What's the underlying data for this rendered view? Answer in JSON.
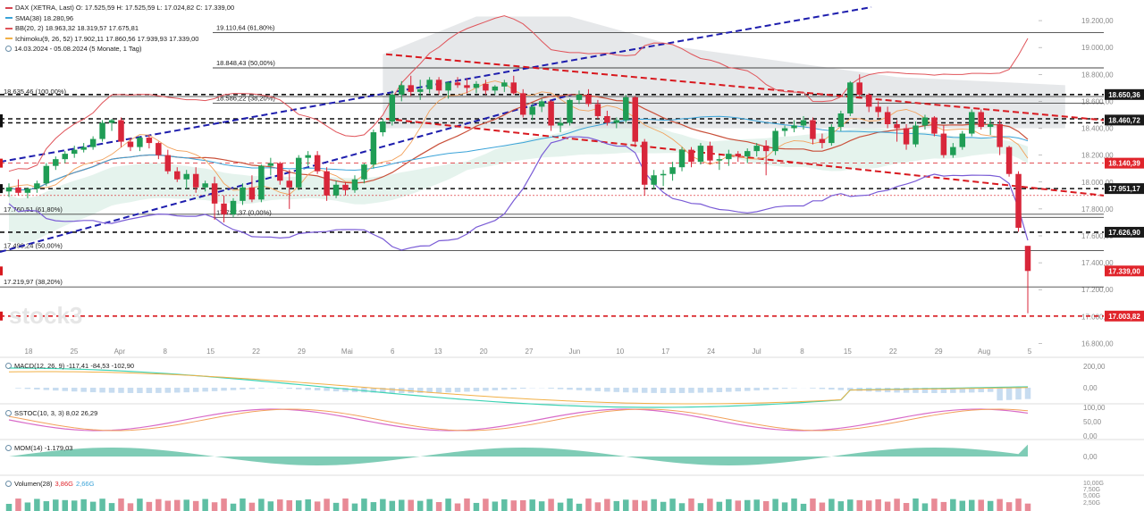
{
  "legend": {
    "title_row": "DAX (XETRA, Last)  O: 17.525,59  H: 17.525,59  L: 17.024,82  C: 17.339,00",
    "sma_row": "SMA(38)  18.280,96",
    "bb_row": "BB(20, 2)  18.963,32  18.319,57  17.675,81",
    "ichimoku_row": "Ichimoku(9, 26, 52)  17.902,11  17.860,56  17.939,93  17.339,00",
    "period_row": "14.03.2024 - 05.08.2024  (5 Monate, 1 Tag)",
    "colors": {
      "title": "#d64550",
      "sma": "#3aa3d8",
      "bb": "#e0545a",
      "ichimoku": "#f2b046",
      "period": "#222222"
    }
  },
  "watermark": "stock3",
  "fib_labels": [
    {
      "text": "19.110,64 (61,80%)",
      "value": 19110.64
    },
    {
      "text": "18.848,43 (50,00%)",
      "value": 18848.43
    },
    {
      "text": "18.635,46 (100,00%)",
      "value": 18635.46
    },
    {
      "text": "18.586,22 (38,20%)",
      "value": 18586.22
    },
    {
      "text": "17.760,51 (61,80%)",
      "value": 17760.51
    },
    {
      "text": "17.737,37 (0,00%)",
      "value": 17737.37
    },
    {
      "text": "17.490,24 (50,00%)",
      "value": 17490.24
    },
    {
      "text": "17.219,97 (38,20%)",
      "value": 17219.97
    }
  ],
  "price_tags": [
    {
      "text": "18.650,36",
      "value": 18650.36,
      "bg": "#1a1a1a"
    },
    {
      "text": "18.460,72",
      "value": 18460.72,
      "bg": "#1a1a1a"
    },
    {
      "text": "18.140,39",
      "value": 18140.39,
      "bg": "#e0242b"
    },
    {
      "text": "17.951,17",
      "value": 17951.17,
      "bg": "#1a1a1a"
    },
    {
      "text": "17.626,90",
      "value": 17626.9,
      "bg": "#1a1a1a"
    },
    {
      "text": "17.339,00",
      "value": 17339.0,
      "bg": "#e0242b"
    },
    {
      "text": "17.003,82",
      "value": 17003.82,
      "bg": "#e0242b"
    }
  ],
  "x_labels": [
    "18",
    "25",
    "Apr",
    "8",
    "15",
    "22",
    "29",
    "Mai",
    "6",
    "13",
    "20",
    "27",
    "Jun",
    "10",
    "17",
    "24",
    "Jul",
    "8",
    "15",
    "22",
    "29",
    "Aug",
    "5"
  ],
  "sub_panels": {
    "macd": {
      "label": "MACD(12, 26, 9)  -117,41  -84,53  -102,90",
      "ticks": [
        "200,00",
        "0,00"
      ]
    },
    "sstoc": {
      "label": "SSTOC(10, 3, 3)  8,02  26,29",
      "ticks": [
        "100,00",
        "50,00",
        "0,00"
      ]
    },
    "mom": {
      "label": "MOM(14)  -1.179,03",
      "ticks": [
        "0,00"
      ]
    },
    "volume": {
      "label_name": "Volumen(28)",
      "label_v1": "3,86G",
      "label_v2": "2,66G",
      "ticks": [
        "10,00G",
        "7,50G",
        "5,00G",
        "2,50G"
      ]
    }
  },
  "chart_data": {
    "type": "candlestick",
    "title": "DAX (XETRA, Last)",
    "period": "14.03.2024 - 05.08.2024",
    "y_axis": {
      "ticks": [
        19200,
        19000,
        18800,
        18600,
        18400,
        18200,
        18000,
        17800,
        17600,
        17400,
        17200,
        17000,
        16800
      ],
      "tick_labels": [
        "19.200,00",
        "19.000,00",
        "18.800,00",
        "18.600,00",
        "18.400,00",
        "18.200,00",
        "18.000,00",
        "17.800,00",
        "17.600,00",
        "17.400,00",
        "17.200,00",
        "17.000,00",
        "16.800,00"
      ],
      "range": [
        16750,
        19300
      ]
    },
    "last": {
      "open": 17525.59,
      "high": 17525.59,
      "low": 17024.82,
      "close": 17339.0
    },
    "candles": [
      [
        17930,
        17990,
        17890,
        17960
      ],
      [
        17960,
        18020,
        17900,
        17920
      ],
      [
        17920,
        17960,
        17880,
        17950
      ],
      [
        17950,
        18010,
        17920,
        17990
      ],
      [
        17990,
        18140,
        17970,
        18120
      ],
      [
        18120,
        18190,
        18090,
        18170
      ],
      [
        18170,
        18230,
        18140,
        18210
      ],
      [
        18210,
        18270,
        18180,
        18240
      ],
      [
        18240,
        18290,
        18220,
        18260
      ],
      [
        18260,
        18340,
        18240,
        18320
      ],
      [
        18320,
        18460,
        18300,
        18440
      ],
      [
        18440,
        18470,
        18380,
        18460
      ],
      [
        18460,
        18480,
        18260,
        18300
      ],
      [
        18300,
        18330,
        18230,
        18260
      ],
      [
        18260,
        18340,
        18230,
        18330
      ],
      [
        18330,
        18350,
        18250,
        18290
      ],
      [
        18290,
        18300,
        18170,
        18200
      ],
      [
        18200,
        18240,
        18060,
        18080
      ],
      [
        18080,
        18110,
        18000,
        18020
      ],
      [
        18020,
        18090,
        17950,
        18060
      ],
      [
        18060,
        18110,
        17920,
        17960
      ],
      [
        17960,
        18010,
        17930,
        17990
      ],
      [
        17990,
        18040,
        17720,
        17840
      ],
      [
        17840,
        17900,
        17700,
        17760
      ],
      [
        17760,
        17880,
        17740,
        17860
      ],
      [
        17860,
        17990,
        17830,
        17960
      ],
      [
        17960,
        18050,
        17850,
        17870
      ],
      [
        17870,
        18130,
        17850,
        18120
      ],
      [
        18120,
        18180,
        18050,
        18140
      ],
      [
        18140,
        18150,
        17980,
        18010
      ],
      [
        18010,
        18090,
        17800,
        17960
      ],
      [
        17960,
        18200,
        17940,
        18180
      ],
      [
        18180,
        18230,
        18120,
        18200
      ],
      [
        18200,
        18230,
        18060,
        18080
      ],
      [
        18080,
        18110,
        17860,
        17900
      ],
      [
        17900,
        18010,
        17880,
        17980
      ],
      [
        17980,
        18000,
        17900,
        17940
      ],
      [
        17940,
        18050,
        17920,
        18020
      ],
      [
        18020,
        18140,
        17990,
        18130
      ],
      [
        18130,
        18390,
        18100,
        18370
      ],
      [
        18370,
        18470,
        18340,
        18450
      ],
      [
        18450,
        18680,
        18420,
        18650
      ],
      [
        18650,
        18750,
        18600,
        18720
      ],
      [
        18720,
        18790,
        18640,
        18670
      ],
      [
        18670,
        18760,
        18610,
        18690
      ],
      [
        18690,
        18780,
        18660,
        18760
      ],
      [
        18760,
        18780,
        18650,
        18680
      ],
      [
        18680,
        18750,
        18620,
        18740
      ],
      [
        18740,
        18780,
        18700,
        18720
      ],
      [
        18720,
        18770,
        18660,
        18700
      ],
      [
        18700,
        18750,
        18660,
        18730
      ],
      [
        18730,
        18760,
        18650,
        18680
      ],
      [
        18680,
        18720,
        18650,
        18710
      ],
      [
        18710,
        18760,
        18670,
        18740
      ],
      [
        18740,
        18790,
        18650,
        18660
      ],
      [
        18660,
        18690,
        18480,
        18500
      ],
      [
        18500,
        18580,
        18460,
        18560
      ],
      [
        18560,
        18620,
        18520,
        18600
      ],
      [
        18600,
        18610,
        18380,
        18420
      ],
      [
        18420,
        18480,
        18370,
        18440
      ],
      [
        18440,
        18620,
        18420,
        18610
      ],
      [
        18610,
        18680,
        18580,
        18650
      ],
      [
        18650,
        18690,
        18560,
        18580
      ],
      [
        18580,
        18610,
        18470,
        18490
      ],
      [
        18490,
        18530,
        18420,
        18440
      ],
      [
        18440,
        18480,
        18400,
        18460
      ],
      [
        18460,
        18650,
        18440,
        18630
      ],
      [
        18630,
        18640,
        18260,
        18300
      ],
      [
        18300,
        18320,
        17900,
        17980
      ],
      [
        17980,
        18090,
        17950,
        18050
      ],
      [
        18050,
        18090,
        17970,
        18060
      ],
      [
        18060,
        18150,
        18010,
        18110
      ],
      [
        18110,
        18260,
        18080,
        18240
      ],
      [
        18240,
        18260,
        18110,
        18150
      ],
      [
        18150,
        18290,
        18130,
        18270
      ],
      [
        18270,
        18300,
        18130,
        18160
      ],
      [
        18160,
        18200,
        18090,
        18170
      ],
      [
        18170,
        18240,
        18120,
        18210
      ],
      [
        18210,
        18230,
        18150,
        18190
      ],
      [
        18190,
        18250,
        18140,
        18230
      ],
      [
        18230,
        18290,
        18190,
        18270
      ],
      [
        18270,
        18310,
        18050,
        18230
      ],
      [
        18230,
        18400,
        18200,
        18380
      ],
      [
        18380,
        18420,
        18340,
        18400
      ],
      [
        18400,
        18460,
        18370,
        18420
      ],
      [
        18420,
        18490,
        18390,
        18460
      ],
      [
        18460,
        18480,
        18280,
        18320
      ],
      [
        18320,
        18360,
        18250,
        18290
      ],
      [
        18290,
        18430,
        18270,
        18410
      ],
      [
        18410,
        18530,
        18380,
        18510
      ],
      [
        18510,
        18750,
        18490,
        18740
      ],
      [
        18740,
        18800,
        18620,
        18650
      ],
      [
        18650,
        18660,
        18520,
        18560
      ],
      [
        18560,
        18600,
        18480,
        18520
      ],
      [
        18520,
        18560,
        18400,
        18430
      ],
      [
        18430,
        18460,
        18300,
        18400
      ],
      [
        18400,
        18430,
        18240,
        18280
      ],
      [
        18280,
        18450,
        18260,
        18420
      ],
      [
        18420,
        18500,
        18390,
        18480
      ],
      [
        18480,
        18490,
        18340,
        18360
      ],
      [
        18360,
        18420,
        18180,
        18200
      ],
      [
        18200,
        18290,
        18180,
        18260
      ],
      [
        18260,
        18380,
        18240,
        18360
      ],
      [
        18360,
        18540,
        18340,
        18520
      ],
      [
        18520,
        18540,
        18390,
        18410
      ],
      [
        18410,
        18470,
        18350,
        18430
      ],
      [
        18430,
        18460,
        18200,
        18260
      ],
      [
        18260,
        18270,
        18040,
        18060
      ],
      [
        18060,
        18080,
        17630,
        17660
      ],
      [
        17525.59,
        17525.59,
        17024.82,
        17339.0
      ]
    ]
  }
}
